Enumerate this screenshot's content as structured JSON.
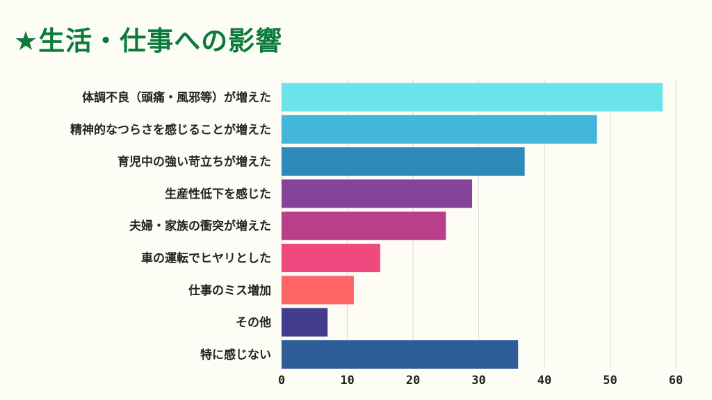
{
  "title": "★生活・仕事への影響",
  "chart_data": {
    "type": "bar",
    "orientation": "horizontal",
    "title": "★生活・仕事への影響",
    "xlabel": "",
    "ylabel": "",
    "xlim": [
      0,
      60
    ],
    "x_ticks": [
      0,
      10,
      20,
      30,
      40,
      50,
      60
    ],
    "grid": true,
    "categories": [
      "体調不良（頭痛・風邪等）が増えた",
      "精神的なつらさを感じることが増えた",
      "育児中の強い苛立ちが増えた",
      "生産性低下を感じた",
      "夫婦・家族の衝突が増えた",
      "車の運転でヒヤリとした",
      "仕事のミス増加",
      "その他",
      "特に感じない"
    ],
    "values": [
      58,
      48,
      37,
      29,
      25,
      15,
      11,
      7,
      36
    ],
    "colors": [
      "#6ae3ea",
      "#43b7d9",
      "#2e8ab9",
      "#85449a",
      "#ba3e89",
      "#ee4a80",
      "#fd6466",
      "#443c8e",
      "#2f5d9a"
    ]
  }
}
